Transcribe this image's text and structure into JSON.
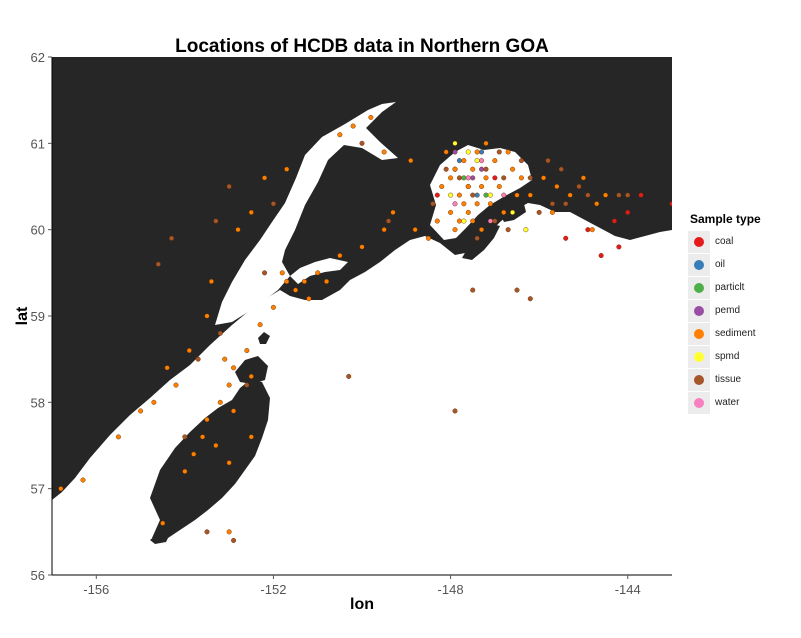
{
  "title": "Locations of HCDB data in Northern GOA",
  "x_axis": {
    "label": "lon",
    "range": [
      -157,
      -143
    ],
    "ticks": [
      -156,
      -152,
      -148,
      -144
    ]
  },
  "y_axis": {
    "label": "lat",
    "range": [
      56,
      62
    ],
    "ticks": [
      56,
      57,
      58,
      59,
      60,
      61,
      62
    ]
  },
  "colors": {
    "land": "#262626",
    "water": "#ffffff"
  },
  "legend": {
    "title": "Sample type",
    "items": [
      {
        "label": "coal",
        "color": "#e41a1c"
      },
      {
        "label": "oil",
        "color": "#377eb8"
      },
      {
        "label": "particlt",
        "color": "#4daf4a"
      },
      {
        "label": "pemd",
        "color": "#984ea3"
      },
      {
        "label": "sediment",
        "color": "#ff7f00"
      },
      {
        "label": "spmd",
        "color": "#ffff33"
      },
      {
        "label": "tissue",
        "color": "#a65628"
      },
      {
        "label": "water",
        "color": "#f781bf"
      }
    ]
  },
  "chart_data": {
    "type": "scatter",
    "title": "Locations of HCDB data in Northern GOA",
    "xlabel": "lon",
    "ylabel": "lat",
    "xlim": [
      -157,
      -143
    ],
    "ylim": [
      56,
      62
    ],
    "grid": false,
    "legend_position": "right",
    "series": [
      {
        "name": "coal",
        "points": [
          [
            -143.0,
            60.3
          ],
          [
            -143.7,
            60.4
          ],
          [
            -144.3,
            60.1
          ],
          [
            -144.2,
            59.8
          ],
          [
            -144.0,
            60.2
          ],
          [
            -144.6,
            59.7
          ],
          [
            -144.9,
            60.0
          ],
          [
            -145.4,
            59.9
          ],
          [
            -147.0,
            60.6
          ],
          [
            -148.3,
            60.4
          ]
        ]
      },
      {
        "name": "oil",
        "points": [
          [
            -147.9,
            60.7
          ],
          [
            -147.6,
            60.5
          ],
          [
            -147.4,
            60.4
          ],
          [
            -147.8,
            60.8
          ],
          [
            -147.3,
            60.9
          ]
        ]
      },
      {
        "name": "particlt",
        "points": [
          [
            -147.7,
            60.6
          ],
          [
            -147.2,
            60.4
          ]
        ]
      },
      {
        "name": "pemd",
        "points": [
          [
            -147.5,
            60.6
          ],
          [
            -147.9,
            60.9
          ],
          [
            -147.3,
            60.7
          ]
        ]
      },
      {
        "name": "sediment",
        "points": [
          [
            -147.9,
            60.7
          ],
          [
            -147.6,
            60.5
          ],
          [
            -147.4,
            60.3
          ],
          [
            -147.2,
            60.6
          ],
          [
            -147.8,
            60.4
          ],
          [
            -147.5,
            60.1
          ],
          [
            -148.0,
            60.2
          ],
          [
            -147.3,
            60.0
          ],
          [
            -147.7,
            60.8
          ],
          [
            -148.2,
            60.5
          ],
          [
            -147.1,
            60.3
          ],
          [
            -146.9,
            60.5
          ],
          [
            -146.6,
            60.7
          ],
          [
            -147.6,
            60.2
          ],
          [
            -148.1,
            60.9
          ],
          [
            -147.0,
            60.8
          ],
          [
            -146.8,
            60.2
          ],
          [
            -147.9,
            60.0
          ],
          [
            -147.4,
            60.9
          ],
          [
            -146.5,
            60.4
          ],
          [
            -147.2,
            61.0
          ],
          [
            -147.7,
            60.3
          ],
          [
            -148.3,
            60.1
          ],
          [
            -147.5,
            60.7
          ],
          [
            -146.7,
            60.9
          ],
          [
            -148.0,
            60.6
          ],
          [
            -147.3,
            60.5
          ],
          [
            -146.4,
            60.6
          ],
          [
            -147.8,
            60.1
          ],
          [
            -146.2,
            60.4
          ],
          [
            -145.9,
            60.6
          ],
          [
            -145.6,
            60.5
          ],
          [
            -145.7,
            60.2
          ],
          [
            -145.3,
            60.4
          ],
          [
            -144.7,
            60.3
          ],
          [
            -144.5,
            60.4
          ],
          [
            -144.8,
            60.0
          ],
          [
            -145.0,
            60.6
          ],
          [
            -149.5,
            60.0
          ],
          [
            -150.0,
            59.8
          ],
          [
            -150.5,
            59.7
          ],
          [
            -151.0,
            59.5
          ],
          [
            -151.3,
            59.4
          ],
          [
            -151.5,
            59.3
          ],
          [
            -151.2,
            59.2
          ],
          [
            -151.7,
            59.4
          ],
          [
            -152.0,
            59.1
          ],
          [
            -152.3,
            58.9
          ],
          [
            -152.6,
            58.6
          ],
          [
            -152.9,
            58.4
          ],
          [
            -153.0,
            58.2
          ],
          [
            -153.2,
            58.0
          ],
          [
            -153.5,
            57.8
          ],
          [
            -153.6,
            57.6
          ],
          [
            -153.8,
            57.4
          ],
          [
            -154.0,
            57.2
          ],
          [
            -153.3,
            57.5
          ],
          [
            -152.9,
            57.9
          ],
          [
            -152.5,
            58.3
          ],
          [
            -153.1,
            58.5
          ],
          [
            -154.2,
            58.2
          ],
          [
            -154.7,
            58.0
          ],
          [
            -155.0,
            57.9
          ],
          [
            -154.4,
            58.4
          ],
          [
            -155.5,
            57.6
          ],
          [
            -156.3,
            57.1
          ],
          [
            -156.8,
            57.0
          ],
          [
            -153.9,
            58.6
          ],
          [
            -153.5,
            59.0
          ],
          [
            -153.4,
            59.4
          ],
          [
            -152.8,
            60.0
          ],
          [
            -152.5,
            60.2
          ],
          [
            -152.2,
            60.6
          ],
          [
            -151.7,
            60.7
          ],
          [
            -150.5,
            61.1
          ],
          [
            -150.2,
            61.2
          ],
          [
            -149.8,
            61.3
          ],
          [
            -149.3,
            60.2
          ],
          [
            -148.8,
            60.0
          ],
          [
            -148.5,
            59.9
          ],
          [
            -150.8,
            59.4
          ],
          [
            -151.8,
            59.5
          ],
          [
            -153.0,
            56.5
          ],
          [
            -154.5,
            56.6
          ],
          [
            -153.0,
            57.3
          ],
          [
            -152.5,
            57.6
          ],
          [
            -149.5,
            60.9
          ],
          [
            -148.9,
            60.8
          ]
        ]
      },
      {
        "name": "spmd",
        "points": [
          [
            -147.9,
            61.0
          ],
          [
            -147.4,
            60.8
          ],
          [
            -147.1,
            60.4
          ],
          [
            -147.6,
            60.9
          ],
          [
            -146.6,
            60.2
          ],
          [
            -146.3,
            60.0
          ],
          [
            -148.0,
            60.4
          ],
          [
            -147.7,
            60.1
          ]
        ]
      },
      {
        "name": "tissue",
        "points": [
          [
            -147.5,
            60.4
          ],
          [
            -147.8,
            60.6
          ],
          [
            -147.2,
            60.7
          ],
          [
            -147.0,
            60.1
          ],
          [
            -146.9,
            60.9
          ],
          [
            -146.4,
            60.8
          ],
          [
            -146.2,
            60.6
          ],
          [
            -145.8,
            60.8
          ],
          [
            -145.5,
            60.7
          ],
          [
            -145.4,
            60.3
          ],
          [
            -145.1,
            60.5
          ],
          [
            -144.9,
            60.4
          ],
          [
            -146.0,
            60.2
          ],
          [
            -146.7,
            60.0
          ],
          [
            -147.4,
            59.9
          ],
          [
            -148.1,
            60.7
          ],
          [
            -148.4,
            60.3
          ],
          [
            -147.5,
            59.3
          ],
          [
            -146.5,
            59.3
          ],
          [
            -146.2,
            59.2
          ],
          [
            -150.3,
            58.3
          ],
          [
            -147.9,
            57.9
          ],
          [
            -152.9,
            56.4
          ],
          [
            -153.5,
            56.5
          ],
          [
            -154.6,
            59.6
          ],
          [
            -154.3,
            59.9
          ],
          [
            -153.3,
            60.1
          ],
          [
            -153.0,
            60.5
          ],
          [
            -150.0,
            61.0
          ],
          [
            -149.4,
            60.1
          ],
          [
            -152.2,
            59.5
          ],
          [
            -153.7,
            58.5
          ],
          [
            -153.2,
            58.8
          ],
          [
            -152.0,
            60.3
          ],
          [
            -152.6,
            58.2
          ],
          [
            -154.0,
            57.6
          ],
          [
            -144.2,
            60.4
          ],
          [
            -144.0,
            60.4
          ],
          [
            -145.7,
            60.3
          ],
          [
            -146.8,
            60.6
          ]
        ]
      },
      {
        "name": "water",
        "points": [
          [
            -147.6,
            60.6
          ],
          [
            -147.3,
            60.8
          ],
          [
            -146.8,
            60.4
          ],
          [
            -147.9,
            60.3
          ],
          [
            -147.1,
            60.1
          ]
        ]
      }
    ]
  }
}
